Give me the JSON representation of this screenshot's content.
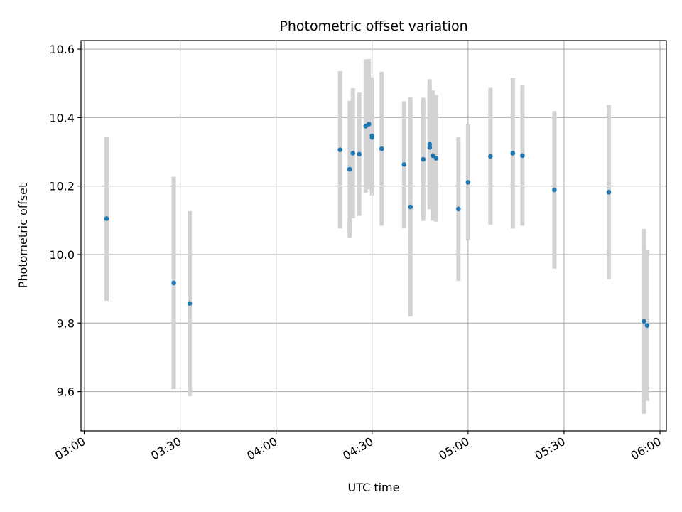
{
  "chart_data": {
    "type": "scatter",
    "title": "Photometric offset variation",
    "xlabel": "UTC time",
    "ylabel": "Photometric offset",
    "x_ticks": [
      "03:00",
      "03:30",
      "04:00",
      "04:30",
      "05:00",
      "05:30",
      "06:00"
    ],
    "y_ticks": [
      "9.6",
      "9.8",
      "10.0",
      "10.2",
      "10.4",
      "10.6"
    ],
    "xlim": [
      "02:59",
      "06:02"
    ],
    "ylim": [
      9.485,
      10.625
    ],
    "grid": true,
    "colors": {
      "points": "#1f77b4",
      "errorbars": "#d3d3d3",
      "grid": "#b0b0b0"
    },
    "points": [
      {
        "x": "03:07",
        "y": 10.105,
        "err": 0.24
      },
      {
        "x": "03:28",
        "y": 9.917,
        "err": 0.31
      },
      {
        "x": "03:33",
        "y": 9.857,
        "err": 0.27
      },
      {
        "x": "04:20",
        "y": 10.306,
        "err": 0.23
      },
      {
        "x": "04:23",
        "y": 10.249,
        "err": 0.2
      },
      {
        "x": "04:24",
        "y": 10.296,
        "err": 0.19
      },
      {
        "x": "04:26",
        "y": 10.293,
        "err": 0.18
      },
      {
        "x": "04:28",
        "y": 10.375,
        "err": 0.195
      },
      {
        "x": "04:29",
        "y": 10.381,
        "err": 0.19
      },
      {
        "x": "04:30",
        "y": 10.347,
        "err": 0.17
      },
      {
        "x": "04:30",
        "y": 10.342,
        "err": 0.17
      },
      {
        "x": "04:33",
        "y": 10.309,
        "err": 0.225
      },
      {
        "x": "04:40",
        "y": 10.263,
        "err": 0.185
      },
      {
        "x": "04:42",
        "y": 10.139,
        "err": 0.32
      },
      {
        "x": "04:46",
        "y": 10.278,
        "err": 0.18
      },
      {
        "x": "04:48",
        "y": 10.322,
        "err": 0.19
      },
      {
        "x": "04:48",
        "y": 10.313,
        "err": 0.17
      },
      {
        "x": "04:49",
        "y": 10.289,
        "err": 0.19
      },
      {
        "x": "04:50",
        "y": 10.281,
        "err": 0.185
      },
      {
        "x": "04:57",
        "y": 10.133,
        "err": 0.21
      },
      {
        "x": "05:00",
        "y": 10.211,
        "err": 0.17
      },
      {
        "x": "05:07",
        "y": 10.287,
        "err": 0.2
      },
      {
        "x": "05:14",
        "y": 10.296,
        "err": 0.22
      },
      {
        "x": "05:17",
        "y": 10.289,
        "err": 0.205
      },
      {
        "x": "05:27",
        "y": 10.189,
        "err": 0.23
      },
      {
        "x": "05:44",
        "y": 10.182,
        "err": 0.255
      },
      {
        "x": "05:55",
        "y": 9.805,
        "err": 0.27
      },
      {
        "x": "05:56",
        "y": 9.793,
        "err": 0.22
      }
    ]
  }
}
